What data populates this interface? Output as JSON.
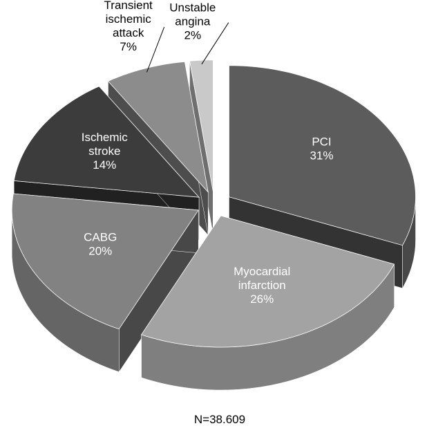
{
  "chart_data": {
    "type": "pie",
    "categories": [
      "PCI",
      "Myocardial infarction",
      "CABG",
      "Ischemic stroke",
      "Transient ischemic attack",
      "Unstable angina"
    ],
    "values": [
      31,
      26,
      20,
      14,
      7,
      2
    ],
    "value_labels": [
      "31%",
      "26%",
      "20%",
      "14%",
      "7%",
      "2%"
    ],
    "colors": [
      "#5c5c5c",
      "#a3a3a3",
      "#828282",
      "#3c3c3c",
      "#8c8c8c",
      "#c9c9c9"
    ],
    "annotation": "N=38.609"
  }
}
